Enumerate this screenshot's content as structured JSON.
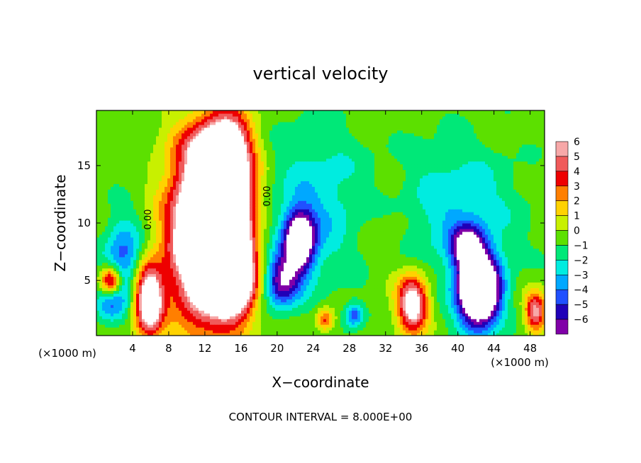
{
  "chart_data": {
    "type": "heatmap",
    "title": "vertical velocity",
    "xlabel": "X−coordinate",
    "ylabel": "Z−coordinate",
    "x_unit_left": "(×1000 m)",
    "x_unit_right": "(×1000 m)",
    "footer": "CONTOUR INTERVAL = 8.000E+00",
    "xlim": [
      0,
      49.6
    ],
    "ylim": [
      0.2,
      19.8
    ],
    "x_ticks": [
      4,
      8,
      12,
      16,
      20,
      24,
      28,
      32,
      36,
      40,
      44,
      48
    ],
    "y_ticks": [
      5,
      10,
      15
    ],
    "contour_label": "0.00",
    "colorbar": {
      "levels": [
        6,
        5,
        4,
        3,
        2,
        1,
        0,
        -1,
        -2,
        -3,
        -4,
        -5,
        -6
      ],
      "labels": [
        "6",
        "5",
        "4",
        "3",
        "2",
        "1",
        "0",
        "−1",
        "−2",
        "−3",
        "−4",
        "−5",
        "−6"
      ],
      "colors": [
        "#f7a8a8",
        "#f05a5a",
        "#ee0000",
        "#ff7f00",
        "#ffd200",
        "#c8f000",
        "#5ce000",
        "#00e878",
        "#00ece0",
        "#00a8ff",
        "#2050ff",
        "#2000b8",
        "#8000a8"
      ]
    },
    "features": [
      {
        "x": 12.0,
        "z": 9.0,
        "sx": 2.7,
        "sz": 5.2,
        "w": 13
      },
      {
        "x": 14.8,
        "z": 12.5,
        "sx": 1.8,
        "sz": 4.6,
        "w": 9
      },
      {
        "x": 15.5,
        "z": 5.0,
        "sx": 1.6,
        "sz": 2.2,
        "w": 8
      },
      {
        "x": 13.0,
        "z": 16.5,
        "sx": 2.3,
        "sz": 1.6,
        "w": 4
      },
      {
        "x": 1.6,
        "z": 5.0,
        "sx": 0.8,
        "sz": 0.9,
        "w": 7
      },
      {
        "x": 5.8,
        "z": 3.3,
        "sx": 1.1,
        "sz": 2.2,
        "w": 9
      },
      {
        "x": 35.0,
        "z": 3.0,
        "sx": 1.2,
        "sz": 1.7,
        "w": 8
      },
      {
        "x": 25.3,
        "z": 1.6,
        "sx": 0.7,
        "sz": 0.7,
        "w": 4
      },
      {
        "x": 48.6,
        "z": 2.3,
        "sx": 0.8,
        "sz": 1.2,
        "w": 6
      },
      {
        "x": 22.5,
        "z": 8.5,
        "sx": 1.2,
        "sz": 1.8,
        "w": -9
      },
      {
        "x": 20.5,
        "z": 5.0,
        "sx": 1.4,
        "sz": 1.6,
        "w": -6
      },
      {
        "x": 42.3,
        "z": 4.2,
        "sx": 1.6,
        "sz": 2.2,
        "w": -14
      },
      {
        "x": 41.0,
        "z": 8.0,
        "sx": 1.2,
        "sz": 1.2,
        "w": -6
      },
      {
        "x": 3.0,
        "z": 7.0,
        "sx": 1.5,
        "sz": 2.5,
        "w": -4
      },
      {
        "x": 28.5,
        "z": 2.0,
        "sx": 0.7,
        "sz": 0.7,
        "w": -4
      },
      {
        "x": 40.0,
        "z": 11.0,
        "sx": 4.5,
        "sz": 4.0,
        "w": -2.5
      },
      {
        "x": 24.5,
        "z": 11.5,
        "sx": 4.0,
        "sz": 5.0,
        "w": -2.3
      },
      {
        "x": 1.5,
        "z": 3.0,
        "sx": 1.2,
        "sz": 1.2,
        "w": -3
      },
      {
        "x": 32.0,
        "z": 9.5,
        "sx": 2.5,
        "sz": 3.0,
        "w": 0.8
      }
    ]
  }
}
